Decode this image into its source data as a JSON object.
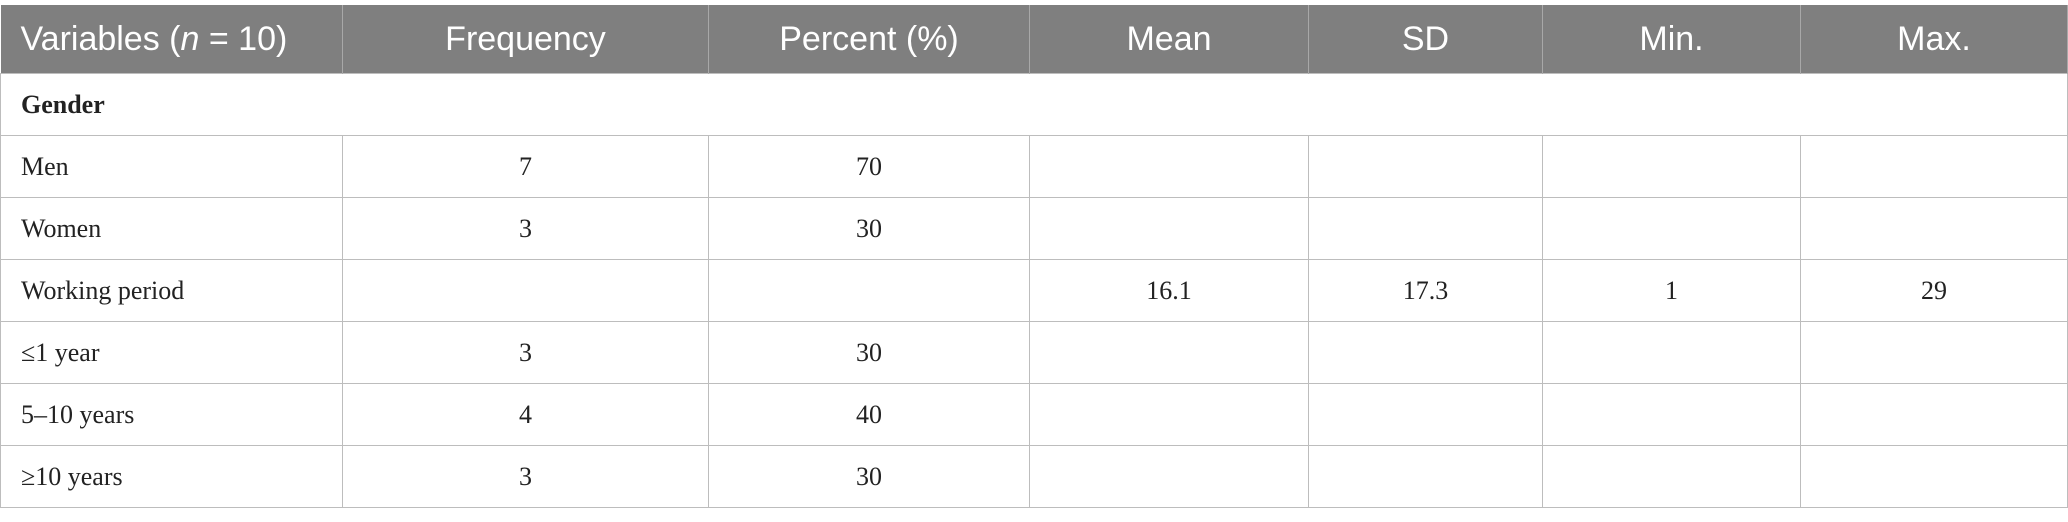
{
  "table": {
    "header": [
      {
        "before": "Variables (",
        "italic": "n",
        "after": " = 10)"
      },
      "Frequency",
      "Percent (%)",
      "Mean",
      "SD",
      "Min.",
      "Max."
    ],
    "rows": [
      {
        "section": "Gender"
      },
      {
        "cells": [
          "Men",
          7,
          70,
          null,
          null,
          null,
          null
        ]
      },
      {
        "cells": [
          "Women",
          3,
          30,
          null,
          null,
          null,
          null
        ]
      },
      {
        "cells": [
          "Working period",
          null,
          null,
          16.1,
          17.3,
          1,
          29
        ]
      },
      {
        "cells": [
          "≤1 year",
          3,
          30,
          null,
          null,
          null,
          null
        ]
      },
      {
        "cells": [
          "5–10 years",
          4,
          40,
          null,
          null,
          null,
          null
        ]
      },
      {
        "cells": [
          "≥10 years",
          3,
          30,
          null,
          null,
          null,
          null
        ]
      }
    ]
  }
}
